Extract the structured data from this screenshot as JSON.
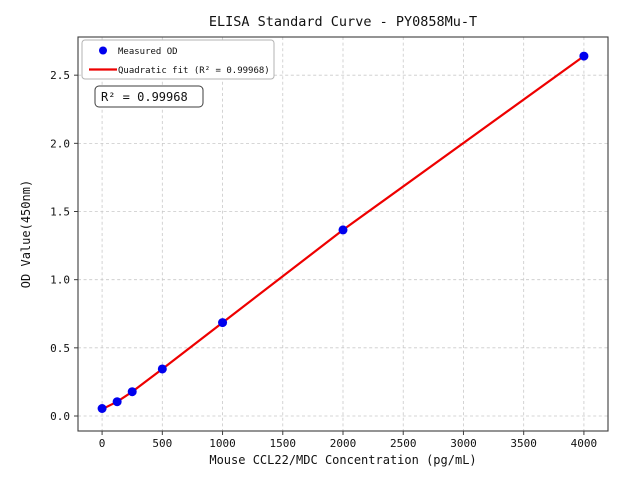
{
  "figure": {
    "background": "#ffffff"
  },
  "chart_data": {
    "type": "scatter",
    "title": "ELISA Standard Curve - PY0858Mu-T",
    "xlabel": "Mouse CCL22/MDC Concentration (pg/mL)",
    "ylabel": "OD Value(450nm)",
    "xlim": [
      -200,
      4200
    ],
    "ylim": [
      -0.11,
      2.78
    ],
    "grid": true,
    "x_ticks": [
      0,
      500,
      1000,
      1500,
      2000,
      2500,
      3000,
      3500,
      4000
    ],
    "x_tick_labels": [
      "0",
      "500",
      "1000",
      "1500",
      "2000",
      "2500",
      "3000",
      "3500",
      "4000"
    ],
    "y_ticks": [
      0.0,
      0.5,
      1.0,
      1.5,
      2.0,
      2.5
    ],
    "y_tick_labels": [
      "0.0",
      "0.5",
      "1.0",
      "1.5",
      "2.0",
      "2.5"
    ],
    "legend": {
      "position": "upper-left",
      "entries": [
        {
          "label": "Measured OD",
          "marker": "circle",
          "color": "#0000ee"
        },
        {
          "label": "Quadratic fit (R² = 0.99968)",
          "marker": "line",
          "color": "#ee0000"
        }
      ]
    },
    "annotation": "R² = 0.99968",
    "r_squared": 0.99968,
    "series": [
      {
        "name": "Quadratic fit",
        "type": "line",
        "color": "#ee0000",
        "x": [
          0,
          125,
          250,
          500,
          1000,
          2000,
          4000
        ],
        "y": [
          0.05,
          0.105,
          0.178,
          0.345,
          0.685,
          1.365,
          2.64
        ]
      },
      {
        "name": "Measured OD",
        "type": "scatter",
        "color": "#0000ee",
        "x": [
          0,
          125,
          250,
          500,
          1000,
          2000,
          4000
        ],
        "y": [
          0.055,
          0.105,
          0.178,
          0.345,
          0.685,
          1.365,
          2.64
        ]
      }
    ]
  }
}
